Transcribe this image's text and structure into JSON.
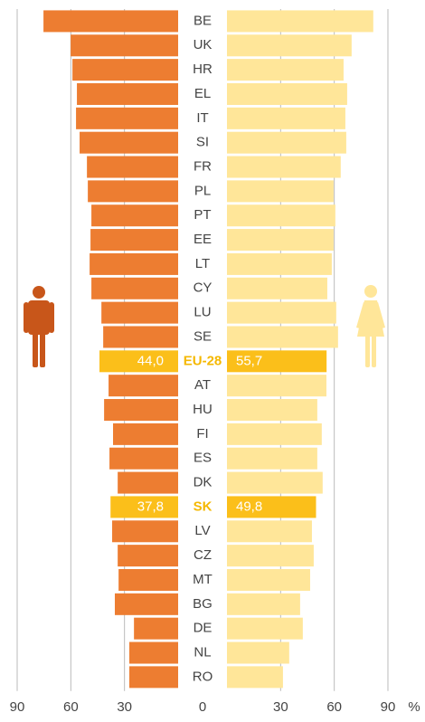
{
  "chart_data": {
    "type": "butterfly",
    "categories": [
      "BE",
      "UK",
      "HR",
      "EL",
      "IT",
      "SI",
      "FR",
      "PL",
      "PT",
      "EE",
      "LT",
      "CY",
      "LU",
      "SE",
      "EU-28",
      "AT",
      "HU",
      "FI",
      "ES",
      "DK",
      "SK",
      "LV",
      "CZ",
      "MT",
      "BG",
      "DE",
      "NL",
      "RO"
    ],
    "series": [
      {
        "name": "Men",
        "color": "#ed7d31",
        "highlight_color": "#fbbf1a",
        "side": "left",
        "values": [
          75.3,
          60.1,
          59.1,
          56.6,
          57.1,
          55.1,
          51.0,
          50.5,
          48.5,
          49.0,
          49.5,
          48.5,
          42.9,
          41.9,
          44.0,
          38.9,
          41.4,
          36.4,
          38.4,
          33.8,
          37.8,
          36.9,
          33.8,
          33.3,
          35.4,
          24.7,
          27.3,
          27.3
        ],
        "value_labels": [
          null,
          null,
          null,
          null,
          null,
          null,
          null,
          null,
          null,
          null,
          null,
          null,
          null,
          null,
          "44,0",
          null,
          null,
          null,
          null,
          null,
          "37,8",
          null,
          null,
          null,
          null,
          null,
          null,
          null
        ]
      },
      {
        "name": "Women",
        "color": "#ffe699",
        "highlight_color": "#fbbf1a",
        "side": "right",
        "values": [
          81.8,
          69.7,
          65.2,
          67.2,
          66.2,
          66.7,
          63.6,
          59.6,
          60.6,
          59.6,
          58.6,
          56.1,
          61.1,
          62.1,
          55.7,
          55.6,
          50.5,
          53.0,
          50.5,
          53.5,
          49.8,
          47.5,
          48.5,
          46.5,
          40.9,
          42.4,
          34.8,
          31.3
        ],
        "value_labels": [
          null,
          null,
          null,
          null,
          null,
          null,
          null,
          null,
          null,
          null,
          null,
          null,
          null,
          null,
          "55,7",
          null,
          null,
          null,
          null,
          null,
          "49,8",
          null,
          null,
          null,
          null,
          null,
          null,
          null
        ]
      }
    ],
    "highlight": [
      14,
      20
    ],
    "highlight_label_color": "#f5b800",
    "xlim": [
      0,
      90
    ],
    "xticks": [
      0,
      30,
      60,
      90
    ],
    "x_unit": "%",
    "grid": true
  }
}
